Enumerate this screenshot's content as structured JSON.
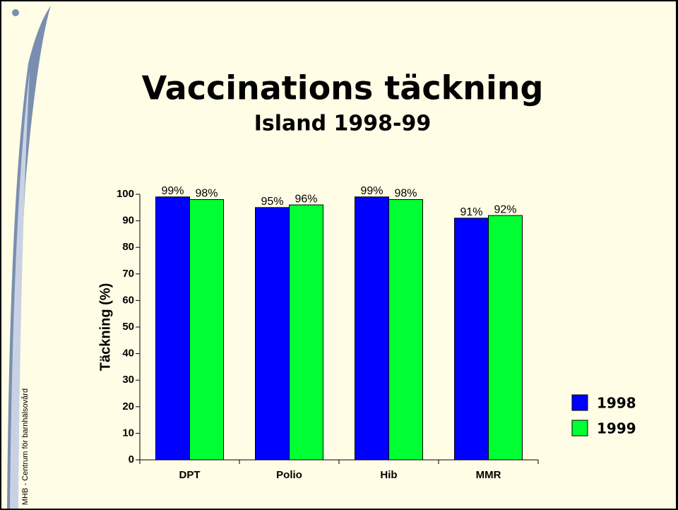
{
  "side_text": "MHB - Centrum för barnhälsovård",
  "chart_data": {
    "type": "bar",
    "title": "Vaccinations täckning",
    "subtitle": "Island 1998-99",
    "ylabel": "Täckning (%)",
    "categories": [
      "DPT",
      "Polio",
      "Hib",
      "MMR"
    ],
    "series": [
      {
        "name": "1998",
        "color": "#0000ff",
        "values": [
          99,
          95,
          99,
          91
        ],
        "value_labels": [
          "99%",
          "95%",
          "99%",
          "91%"
        ]
      },
      {
        "name": "1999",
        "color": "#00ff33",
        "values": [
          98,
          96,
          98,
          92
        ],
        "value_labels": [
          "98%",
          "96%",
          "98%",
          "92%"
        ]
      }
    ],
    "ylim": [
      0,
      100
    ],
    "yticks": [
      0,
      10,
      20,
      30,
      40,
      50,
      60,
      70,
      80,
      90,
      100
    ],
    "legend": "right"
  }
}
